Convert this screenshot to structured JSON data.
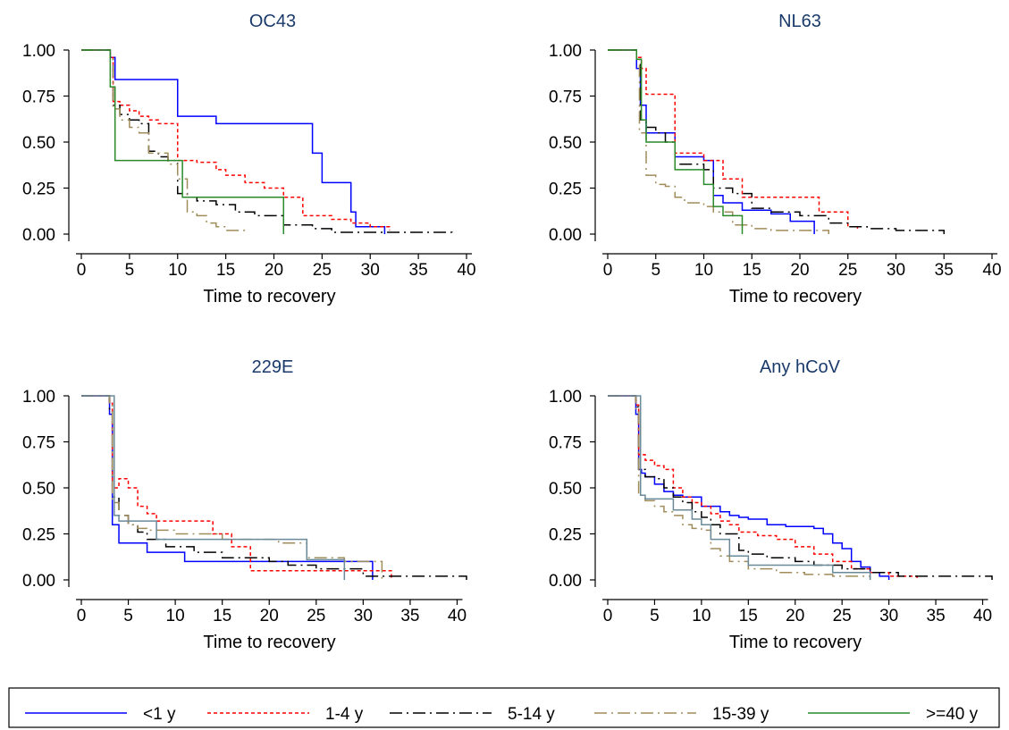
{
  "chart_data": [
    {
      "type": "line",
      "subtype": "kaplan-meier step",
      "title": "OC43",
      "xlabel": "Time to recovery",
      "ylabel": "",
      "xlim": [
        0,
        40
      ],
      "ylim": [
        0,
        1
      ],
      "xticks": [
        "0",
        "5",
        "10",
        "15",
        "20",
        "25",
        "30",
        "35",
        "40"
      ],
      "yticks": [
        "0.00",
        "0.25",
        "0.50",
        "0.75",
        "1.00"
      ],
      "series": [
        {
          "name": "<1 y",
          "x": [
            0,
            3,
            3.5,
            10,
            14,
            24,
            25,
            28,
            28.5,
            31.5
          ],
          "y": [
            1,
            0.96,
            0.84,
            0.64,
            0.6,
            0.44,
            0.28,
            0.12,
            0.04,
            0
          ]
        },
        {
          "name": "1-4 y",
          "x": [
            0,
            3,
            3.3,
            4,
            5,
            6,
            7,
            8,
            10,
            12,
            14,
            15,
            17,
            19,
            21,
            23,
            26,
            28,
            30,
            32
          ],
          "y": [
            1,
            0.96,
            0.72,
            0.7,
            0.67,
            0.64,
            0.62,
            0.6,
            0.4,
            0.39,
            0.35,
            0.32,
            0.28,
            0.25,
            0.2,
            0.1,
            0.08,
            0.06,
            0.04,
            0.02
          ]
        },
        {
          "name": "5-14 y",
          "x": [
            0,
            3,
            3.3,
            4,
            5,
            6,
            7,
            8,
            9,
            10,
            11,
            12,
            14,
            16,
            18,
            21,
            24,
            26,
            30,
            38.5
          ],
          "y": [
            1,
            0.96,
            0.7,
            0.65,
            0.62,
            0.6,
            0.45,
            0.42,
            0.4,
            0.22,
            0.2,
            0.18,
            0.16,
            0.12,
            0.1,
            0.05,
            0.03,
            0.01,
            0.01,
            0
          ]
        },
        {
          "name": "15-39 y",
          "x": [
            0,
            3,
            3.3,
            4,
            5,
            6,
            7,
            9,
            10,
            11,
            12,
            13,
            14,
            15,
            17
          ],
          "y": [
            1,
            0.95,
            0.68,
            0.62,
            0.58,
            0.55,
            0.44,
            0.38,
            0.3,
            0.12,
            0.1,
            0.06,
            0.04,
            0.02,
            0.02
          ]
        },
        {
          "name": ">=40 y",
          "x": [
            0,
            3,
            3.5,
            10.5,
            21,
            21
          ],
          "y": [
            1,
            0.8,
            0.4,
            0.2,
            0.2,
            0
          ]
        }
      ]
    },
    {
      "type": "line",
      "subtype": "kaplan-meier step",
      "title": "NL63",
      "xlabel": "Time to recovery",
      "ylabel": "",
      "xlim": [
        0,
        40
      ],
      "ylim": [
        0,
        1
      ],
      "xticks": [
        "0",
        "5",
        "10",
        "15",
        "20",
        "25",
        "30",
        "35",
        "40"
      ],
      "yticks": [
        "0.00",
        "0.25",
        "0.50",
        "0.75",
        "1.00"
      ],
      "series": [
        {
          "name": "<1 y",
          "x": [
            0,
            3,
            3.4,
            4,
            7,
            10,
            11,
            12,
            14,
            17,
            19,
            21.5
          ],
          "y": [
            1,
            0.9,
            0.7,
            0.55,
            0.42,
            0.4,
            0.21,
            0.17,
            0.13,
            0.11,
            0.07,
            0
          ]
        },
        {
          "name": "1-4 y",
          "x": [
            0,
            3,
            3.5,
            4,
            7,
            10,
            12,
            14,
            20,
            22,
            25,
            26
          ],
          "y": [
            1,
            0.96,
            0.9,
            0.76,
            0.44,
            0.4,
            0.3,
            0.2,
            0.2,
            0.12,
            0.04,
            0.03
          ]
        },
        {
          "name": "5-14 y",
          "x": [
            0,
            3,
            3.4,
            4,
            5,
            6,
            7,
            10,
            11,
            13,
            15,
            17,
            20,
            23,
            25,
            27,
            30,
            35
          ],
          "y": [
            1,
            0.95,
            0.62,
            0.58,
            0.55,
            0.5,
            0.38,
            0.35,
            0.25,
            0.22,
            0.14,
            0.12,
            0.1,
            0.06,
            0.04,
            0.03,
            0.02,
            0
          ]
        },
        {
          "name": "15-39 y",
          "x": [
            0,
            3,
            3.3,
            4,
            5,
            6,
            7,
            8,
            10,
            11,
            13,
            15,
            17,
            20,
            23
          ],
          "y": [
            1,
            0.95,
            0.55,
            0.32,
            0.27,
            0.26,
            0.2,
            0.17,
            0.15,
            0.12,
            0.05,
            0.03,
            0.02,
            0.02,
            0
          ]
        },
        {
          "name": ">=40 y",
          "x": [
            0,
            3,
            3.5,
            4,
            7,
            10,
            11,
            12,
            14
          ],
          "y": [
            1,
            0.95,
            0.62,
            0.5,
            0.35,
            0.27,
            0.15,
            0.1,
            0
          ]
        }
      ]
    },
    {
      "type": "line",
      "subtype": "kaplan-meier step",
      "title": "229E",
      "xlabel": "Time to recovery",
      "ylabel": "",
      "xlim": [
        0,
        41
      ],
      "ylim": [
        0,
        1
      ],
      "xticks": [
        "0",
        "5",
        "10",
        "15",
        "20",
        "25",
        "30",
        "35",
        "40"
      ],
      "yticks": [
        "0.00",
        "0.25",
        "0.50",
        "0.75",
        "1.00"
      ],
      "series": [
        {
          "name": "<1 y",
          "x": [
            0,
            3,
            3.3,
            4,
            7,
            11,
            18,
            31
          ],
          "y": [
            1,
            0.9,
            0.3,
            0.2,
            0.15,
            0.1,
            0.1,
            0
          ]
        },
        {
          "name": "1-4 y",
          "x": [
            0,
            3,
            3.3,
            4,
            5,
            6,
            7,
            8,
            10,
            14,
            16,
            18,
            20,
            24,
            32,
            33
          ],
          "y": [
            1,
            0.96,
            0.5,
            0.55,
            0.5,
            0.4,
            0.36,
            0.32,
            0.32,
            0.25,
            0.18,
            0.05,
            0.05,
            0.05,
            0.05,
            0
          ]
        },
        {
          "name": "5-14 y",
          "x": [
            0,
            3,
            3.3,
            4,
            5,
            6,
            7,
            9,
            12,
            15,
            20,
            22,
            25,
            30,
            41
          ],
          "y": [
            1,
            0.92,
            0.45,
            0.35,
            0.3,
            0.26,
            0.22,
            0.18,
            0.15,
            0.12,
            0.1,
            0.08,
            0.06,
            0.02,
            0
          ]
        },
        {
          "name": "15-39 y",
          "x": [
            0,
            3,
            3.3,
            4,
            5,
            6,
            7,
            10,
            15,
            20,
            21,
            24,
            28,
            32
          ],
          "y": [
            1,
            0.95,
            0.42,
            0.35,
            0.3,
            0.28,
            0.27,
            0.25,
            0.22,
            0.22,
            0.2,
            0.12,
            0.1,
            0
          ]
        },
        {
          "name": ">=40 y",
          "x": [
            0,
            3.5,
            4,
            8,
            24,
            28,
            28
          ],
          "y": [
            1,
            0.35,
            0.32,
            0.22,
            0.11,
            0.11,
            0
          ]
        }
      ]
    },
    {
      "type": "line",
      "subtype": "kaplan-meier step",
      "title": "Any hCoV",
      "xlabel": "Time to recovery",
      "ylabel": "",
      "xlim": [
        0,
        41
      ],
      "ylim": [
        0,
        1
      ],
      "xticks": [
        "0",
        "5",
        "10",
        "15",
        "20",
        "25",
        "30",
        "35",
        "40"
      ],
      "yticks": [
        "0.00",
        "0.25",
        "0.50",
        "0.75",
        "1.00"
      ],
      "series": [
        {
          "name": "<1 y",
          "x": [
            0,
            3,
            3.3,
            3.6,
            4,
            5,
            6,
            7,
            8,
            10,
            12,
            13,
            14,
            15,
            17,
            19,
            22,
            23,
            24,
            25,
            26,
            27,
            28,
            29,
            30
          ],
          "y": [
            1,
            0.9,
            0.6,
            0.58,
            0.56,
            0.52,
            0.48,
            0.46,
            0.45,
            0.4,
            0.37,
            0.35,
            0.34,
            0.33,
            0.3,
            0.29,
            0.28,
            0.25,
            0.2,
            0.17,
            0.1,
            0.07,
            0.04,
            0.02,
            0
          ]
        },
        {
          "name": "1-4 y",
          "x": [
            0,
            3,
            3.3,
            4,
            5,
            6,
            7,
            8,
            9,
            10,
            11,
            12,
            13,
            14,
            16,
            18,
            20,
            22,
            24,
            26,
            28,
            30,
            33
          ],
          "y": [
            1,
            0.95,
            0.68,
            0.65,
            0.62,
            0.6,
            0.5,
            0.45,
            0.42,
            0.4,
            0.36,
            0.32,
            0.3,
            0.26,
            0.24,
            0.22,
            0.18,
            0.14,
            0.1,
            0.06,
            0.04,
            0.02,
            0
          ]
        },
        {
          "name": "5-14 y",
          "x": [
            0,
            3,
            3.3,
            4,
            5,
            6,
            7,
            8,
            9,
            10,
            11,
            12,
            14,
            15,
            17,
            20,
            22,
            25,
            28,
            31,
            41
          ],
          "y": [
            1,
            0.94,
            0.6,
            0.56,
            0.55,
            0.5,
            0.45,
            0.42,
            0.37,
            0.34,
            0.3,
            0.25,
            0.16,
            0.14,
            0.12,
            0.1,
            0.08,
            0.06,
            0.04,
            0.02,
            0
          ]
        },
        {
          "name": "15-39 y",
          "x": [
            0,
            3,
            3.3,
            4,
            5,
            6,
            7,
            8,
            9,
            10,
            11,
            12,
            13,
            15,
            18,
            21,
            24,
            25,
            28
          ],
          "y": [
            1,
            0.93,
            0.46,
            0.43,
            0.4,
            0.37,
            0.35,
            0.3,
            0.28,
            0.27,
            0.17,
            0.13,
            0.1,
            0.06,
            0.04,
            0.03,
            0.02,
            0.02,
            0
          ]
        },
        {
          "name": ">=40 y",
          "x": [
            0,
            3.5,
            4,
            7,
            9,
            10,
            11,
            13,
            15,
            24,
            28,
            28
          ],
          "y": [
            1,
            0.46,
            0.44,
            0.38,
            0.33,
            0.3,
            0.22,
            0.13,
            0.08,
            0.04,
            0.04,
            0
          ]
        }
      ]
    }
  ],
  "legend": {
    "placement": "bottom",
    "entries": [
      {
        "label": "<1 y",
        "color": "#0000ff",
        "dash": "solid"
      },
      {
        "label": "1-4 y",
        "color": "#ff0000",
        "dash": "short-dash"
      },
      {
        "label": "5-14 y",
        "color": "#000000",
        "dash": "long-dash-dot"
      },
      {
        "label": "15-39 y",
        "color": "#a08c5a",
        "dash": "long-dash-dot"
      },
      {
        "label": ">=40 y",
        "color": "#2a8a2a",
        "dash": "solid"
      }
    ]
  },
  "series_styles": {
    "<1 y": {
      "color": "#0000ff",
      "dash": ""
    },
    "1-4 y": {
      "color": "#ff0000",
      "dash": "4 3"
    },
    "5-14 y": {
      "color": "#000000",
      "dash": "14 5 2 5"
    },
    "15-39 y": {
      "color": "#a08c5a",
      "dash": "14 5 2 5"
    },
    ">=40 y": {
      "color": "#2a8a2a",
      "dash": ""
    }
  },
  "panel229_last_color": "#6a8a9a"
}
